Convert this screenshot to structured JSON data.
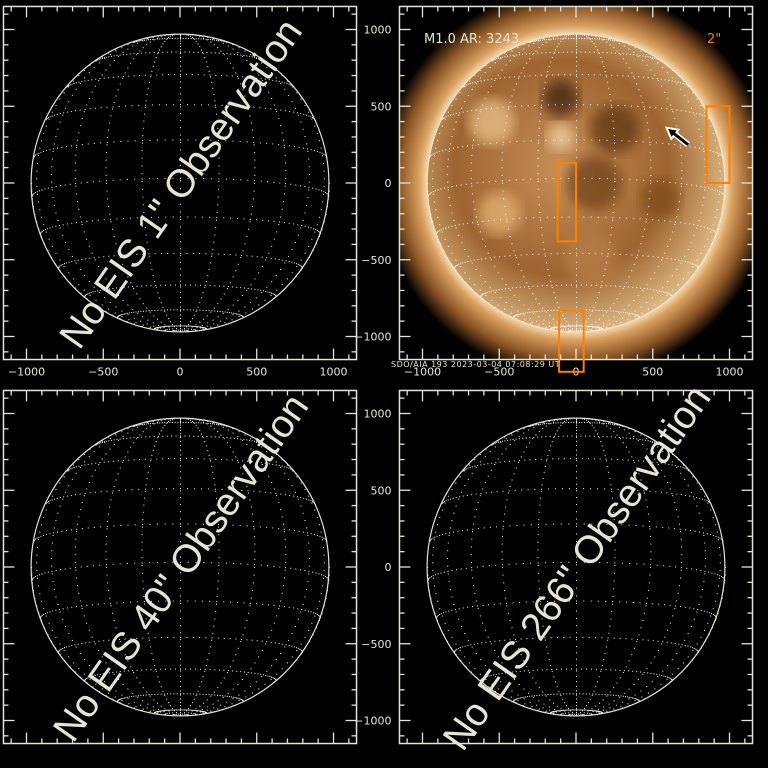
{
  "colors": {
    "axis": "#e8e4d2",
    "box": "#ff7f00",
    "grid": "#ffffff"
  },
  "axis": {
    "range": [
      -1150,
      1150
    ],
    "major_ticks": [
      -1000,
      -500,
      0,
      500,
      1000
    ],
    "tick_labels": [
      "−1000",
      "−500",
      "0",
      "500",
      "1000"
    ]
  },
  "panels": [
    {
      "id": "top-left",
      "message": "No EIS 1\" Observation",
      "has_image": false
    },
    {
      "id": "top-right",
      "has_image": true,
      "flare_label": "M1.0 AR: 3243",
      "scale_label": "2\"",
      "caption": "SDO/AIA 193   2023-03-04 07:08:29 UT",
      "boxes": [
        {
          "x": [
            850,
            1000
          ],
          "y": [
            0,
            500
          ]
        },
        {
          "x": [
            -120,
            0
          ],
          "y": [
            -380,
            130
          ]
        },
        {
          "x": [
            -110,
            50
          ],
          "y": [
            -830,
            -1230
          ]
        }
      ],
      "arrow": {
        "from": [
          730,
          250
        ],
        "to": [
          590,
          360
        ],
        "icon": "arrow-icon"
      }
    },
    {
      "id": "bottom-left",
      "message": "No EIS 40\" Observation",
      "has_image": false
    },
    {
      "id": "bottom-right",
      "message": "No EIS 266\" Observation",
      "has_image": false
    }
  ]
}
